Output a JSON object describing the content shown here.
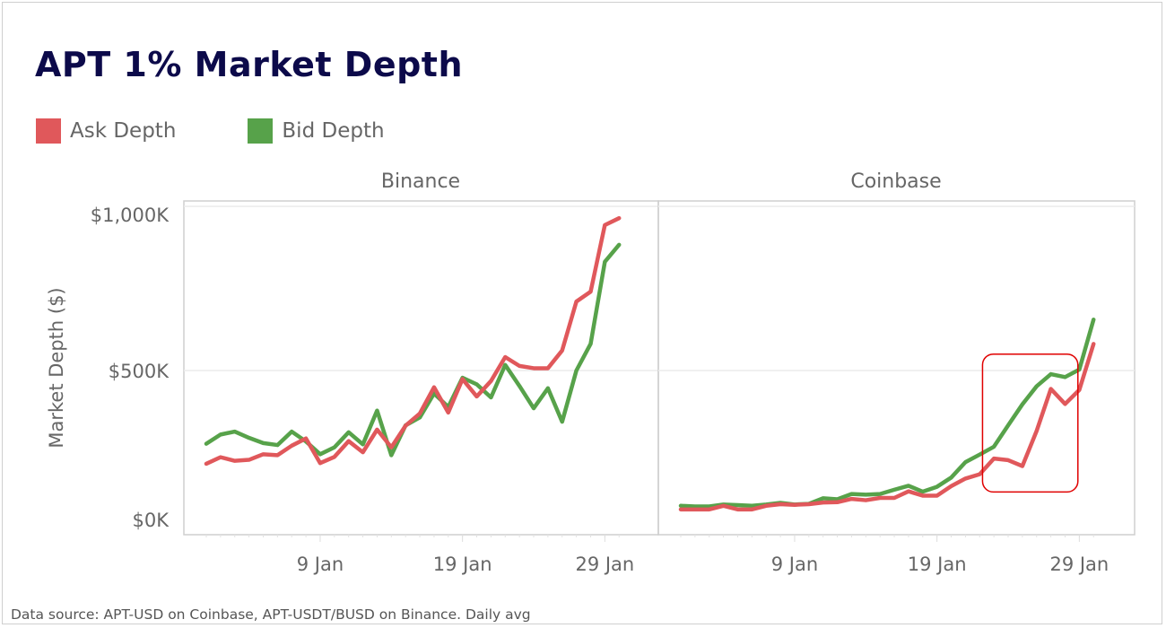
{
  "chart_data": {
    "type": "line",
    "title": "APT 1% Market Depth",
    "ylabel": "Market Depth ($)",
    "ylim": [
      0,
      1000000
    ],
    "yticks": [
      "$0K",
      "$500K",
      "$1,000K"
    ],
    "ytick_values": [
      0,
      500000,
      1000000
    ],
    "xticks": [
      "9 Jan",
      "19 Jan",
      "29 Jan"
    ],
    "xtick_days": [
      9,
      19,
      29
    ],
    "x_days": [
      1,
      2,
      3,
      4,
      5,
      6,
      7,
      8,
      9,
      10,
      11,
      12,
      13,
      14,
      15,
      16,
      17,
      18,
      19,
      20,
      21,
      22,
      23,
      24,
      25,
      26,
      27,
      28,
      29,
      30
    ],
    "grid": true,
    "legend": [
      {
        "name": "Ask Depth",
        "color": "#e0585b"
      },
      {
        "name": "Bid Depth",
        "color": "#57a24a"
      }
    ],
    "legend_placement": "top-left",
    "panels": [
      {
        "name": "Binance",
        "series": [
          {
            "name": "Ask Depth",
            "values": [
              216000,
              236000,
              225000,
              228000,
              245000,
              242000,
              271000,
              293000,
              218000,
              237000,
              285000,
              251000,
              320000,
              266000,
              332000,
              369000,
              449000,
              372000,
              474000,
              421000,
              468000,
              541000,
              514000,
              507000,
              507000,
              561000,
              710000,
              740000,
              943000,
              964000
            ]
          },
          {
            "name": "Bid Depth",
            "values": [
              277000,
              305000,
              314000,
              295000,
              279000,
              273000,
              314000,
              284000,
              245000,
              266000,
              312000,
              275000,
              378000,
              242000,
              333000,
              357000,
              430000,
              389000,
              478000,
              458000,
              418000,
              517000,
              453000,
              385000,
              446000,
              344000,
              500000,
              581000,
              831000,
              883000
            ]
          }
        ]
      },
      {
        "name": "Coinbase",
        "series": [
          {
            "name": "Ask Depth",
            "values": [
              77000,
              77000,
              77000,
              88000,
              77000,
              77000,
              88000,
              93000,
              91000,
              93000,
              98000,
              99000,
              109000,
              105000,
              112000,
              112000,
              132000,
              119000,
              119000,
              148000,
              171000,
              184000,
              232000,
              227000,
              209000,
              316000,
              444000,
              398000,
              441000,
              581000
            ]
          },
          {
            "name": "Bid Depth",
            "values": [
              88000,
              86000,
              86000,
              92000,
              90000,
              88000,
              92000,
              97000,
              92000,
              94000,
              111000,
              108000,
              124000,
              122000,
              124000,
              137000,
              149000,
              131000,
              146000,
              174000,
              221000,
              244000,
              268000,
              333000,
              397000,
              452000,
              489000,
              480000,
              503000,
              655000
            ]
          }
        ],
        "highlight": {
          "from_day": 22.2,
          "to_day": 28.9,
          "ymin": 130000,
          "ymax": 550000,
          "color": "#e00000"
        }
      }
    ],
    "source": "Data source: APT-USD on Coinbase, APT-USDT/BUSD on Binance. Daily avg"
  }
}
